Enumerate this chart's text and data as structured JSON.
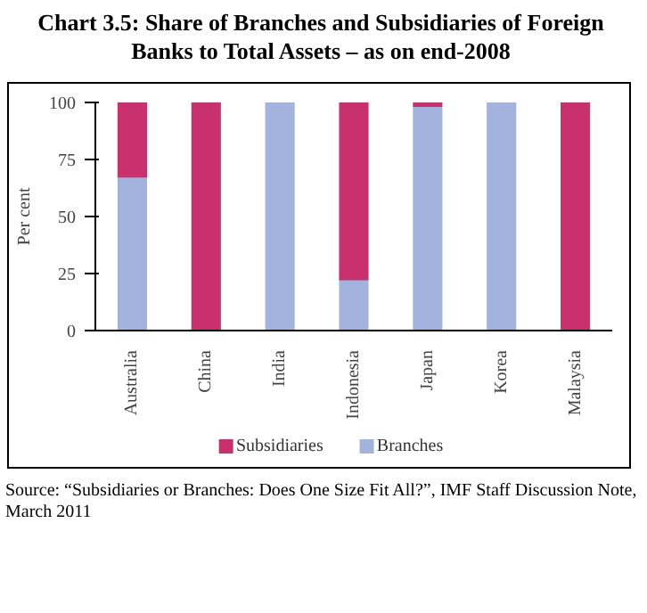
{
  "chart_data": {
    "type": "bar",
    "stacked": true,
    "title": "Chart 3.5: Share of Branches and Subsidiaries of Foreign Banks to Total Assets – as on end-2008",
    "ylabel": "Per cent",
    "categories": [
      "Australia",
      "China",
      "India",
      "Indonesia",
      "Japan",
      "Korea",
      "Malaysia"
    ],
    "series": [
      {
        "name": "Branches",
        "color": "#a3b3de",
        "values": [
          67,
          0,
          100,
          22,
          98,
          100,
          0
        ]
      },
      {
        "name": "Subsidiaries",
        "color": "#c8306e",
        "values": [
          33,
          100,
          0,
          78,
          2,
          0,
          100
        ]
      }
    ],
    "ylim": [
      0,
      100
    ],
    "yticks": [
      0,
      25,
      50,
      75,
      100
    ],
    "grid": false,
    "legend": "bottom",
    "annotations": [
      "Source: “Subsidiaries or Branches: Does One Size Fit All?”, IMF Staff Discussion Note, March 2011"
    ]
  }
}
